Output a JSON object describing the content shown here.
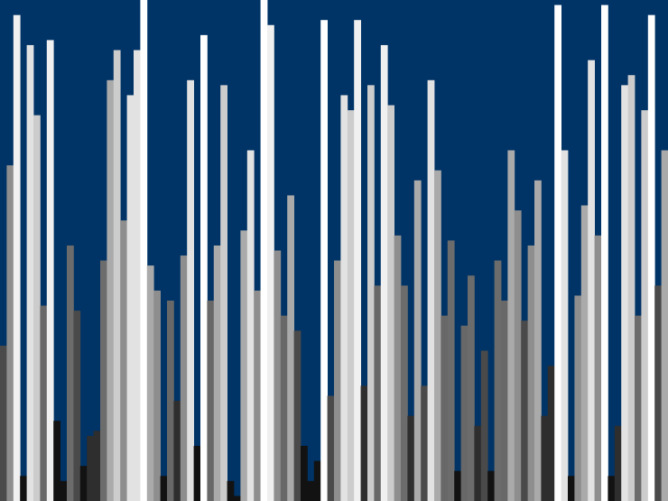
{
  "image": {
    "background": "#003366",
    "bar_count": 100,
    "levels": [
      0.31,
      0.67,
      0.97,
      0.05,
      0.91,
      0.77,
      0.39,
      0.92,
      0.16,
      0.04,
      0.51,
      0.38,
      0.07,
      0.13,
      0.14,
      0.48,
      0.84,
      0.9,
      0.56,
      0.81,
      0.9,
      1.0,
      0.47,
      0.42,
      0.05,
      0.4,
      0.2,
      0.49,
      0.84,
      0.11,
      0.93,
      0.4,
      0.51,
      0.83,
      0.04,
      0.01,
      0.54,
      0.7,
      0.42,
      1.0,
      0.95,
      0.5,
      0.37,
      0.61,
      0.34,
      0.11,
      0.04,
      0.08,
      0.96,
      0.21,
      0.48,
      0.81,
      0.78,
      0.96,
      0.23,
      0.83,
      0.43,
      0.91,
      0.79,
      0.53,
      0.43,
      0.17,
      0.64,
      0.23,
      0.84,
      0.66,
      0.37,
      0.52,
      0.06,
      0.35,
      0.45,
      0.15,
      0.3,
      0.06,
      0.48,
      0.4,
      0.7,
      0.58,
      0.36,
      0.51,
      0.64,
      0.17,
      0.27,
      0.99,
      0.7,
      0.05,
      0.41,
      0.59,
      0.88,
      0.53,
      0.99,
      0.05,
      0.15,
      0.83,
      0.85,
      0.37,
      0.78,
      0.97,
      0.43,
      0.7
    ],
    "shades": [
      "#4a4a4a",
      "#8e8e8e",
      "#f0f0f0",
      "#121212",
      "#e2e2e2",
      "#cccccc",
      "#686868",
      "#f0f0f0",
      "#121212",
      "#121212",
      "#6c6c6c",
      "#4a4a4a",
      "#121212",
      "#2e2e2e",
      "#2e2e2e",
      "#6c6c6c",
      "#aaaaaa",
      "#cccccc",
      "#8e8e8e",
      "#e2e2e2",
      "#e2e2e2",
      "#ffffff",
      "#aaaaaa",
      "#8e8e8e",
      "#121212",
      "#686868",
      "#2e2e2e",
      "#8e8e8e",
      "#e2e2e2",
      "#121212",
      "#ffffff",
      "#686868",
      "#aaaaaa",
      "#cccccc",
      "#121212",
      "#121212",
      "#aaaaaa",
      "#e2e2e2",
      "#8e8e8e",
      "#ffffff",
      "#f0f0f0",
      "#8e8e8e",
      "#686868",
      "#aaaaaa",
      "#4a4a4a",
      "#121212",
      "#121212",
      "#121212",
      "#ffffff",
      "#4a4a4a",
      "#8e8e8e",
      "#e2e2e2",
      "#cccccc",
      "#f0f0f0",
      "#2e2e2e",
      "#cccccc",
      "#686868",
      "#f0f0f0",
      "#cccccc",
      "#8e8e8e",
      "#6c6c6c",
      "#2e2e2e",
      "#aaaaaa",
      "#4a4a4a",
      "#e2e2e2",
      "#aaaaaa",
      "#686868",
      "#6c6c6c",
      "#121212",
      "#686868",
      "#6c6c6c",
      "#2e2e2e",
      "#4a4a4a",
      "#121212",
      "#6c6c6c",
      "#686868",
      "#aaaaaa",
      "#8e8e8e",
      "#4a4a4a",
      "#8e8e8e",
      "#aaaaaa",
      "#2e2e2e",
      "#2e2e2e",
      "#ffffff",
      "#e2e2e2",
      "#121212",
      "#8e8e8e",
      "#aaaaaa",
      "#e2e2e2",
      "#8e8e8e",
      "#ffffff",
      "#121212",
      "#2e2e2e",
      "#e2e2e2",
      "#cccccc",
      "#6c6c6c",
      "#cccccc",
      "#ffffff",
      "#4a4a4a",
      "#aaaaaa"
    ]
  }
}
